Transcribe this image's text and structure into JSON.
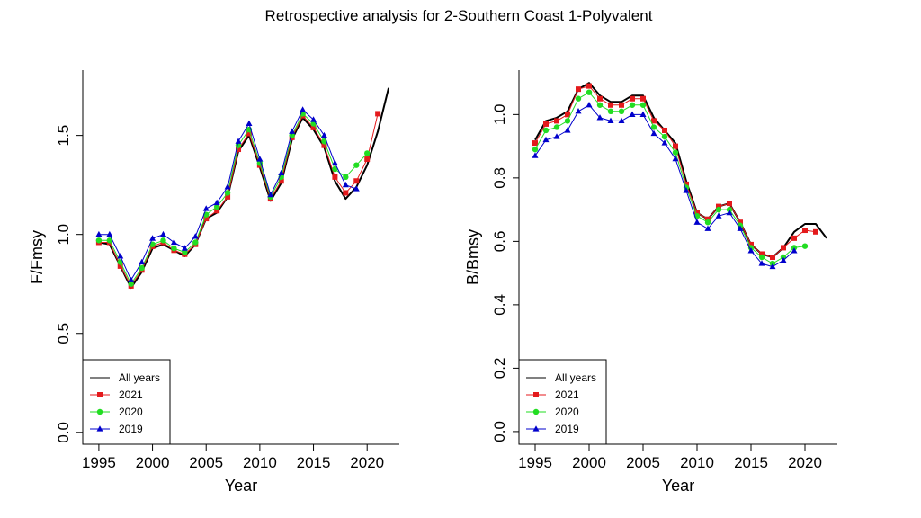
{
  "title": "Retrospective analysis for 2-Southern Coast 1-Polyvalent",
  "colors": {
    "All years": "#000000",
    "2021": "#e41a1c",
    "2020": "#22dd22",
    "2019": "#0000cc"
  },
  "chart_data": [
    {
      "type": "line",
      "title": "",
      "xlabel": "Year",
      "ylabel": "F/Fmsy",
      "xlim": [
        1993.5,
        2023
      ],
      "ylim": [
        -0.06,
        1.83
      ],
      "xticks": [
        1995,
        2000,
        2005,
        2010,
        2015,
        2020
      ],
      "xtick_labels": [
        "1995",
        "2000",
        "2005",
        "2010",
        "2015",
        "2020"
      ],
      "yticks": [
        0,
        0.5,
        1,
        1.5
      ],
      "ytick_labels": [
        "0.0",
        "0.5",
        "1.0",
        "1.5"
      ],
      "legend_position": "bottom-left",
      "legend": [
        "All years",
        "2021",
        "2020",
        "2019"
      ],
      "series": [
        {
          "name": "All years",
          "marker": "none",
          "x": [
            1995,
            1996,
            1997,
            1998,
            1999,
            2000,
            2001,
            2002,
            2003,
            2004,
            2005,
            2006,
            2007,
            2008,
            2009,
            2010,
            2011,
            2012,
            2013,
            2014,
            2015,
            2016,
            2017,
            2018,
            2019,
            2020,
            2021,
            2022
          ],
          "y": [
            0.96,
            0.95,
            0.84,
            0.73,
            0.81,
            0.93,
            0.95,
            0.92,
            0.89,
            0.95,
            1.08,
            1.11,
            1.19,
            1.42,
            1.5,
            1.34,
            1.17,
            1.26,
            1.48,
            1.59,
            1.53,
            1.44,
            1.27,
            1.18,
            1.24,
            1.35,
            1.52,
            1.74
          ]
        },
        {
          "name": "2021",
          "marker": "square",
          "x": [
            1995,
            1996,
            1997,
            1998,
            1999,
            2000,
            2001,
            2002,
            2003,
            2004,
            2005,
            2006,
            2007,
            2008,
            2009,
            2010,
            2011,
            2012,
            2013,
            2014,
            2015,
            2016,
            2017,
            2018,
            2019,
            2020,
            2021
          ],
          "y": [
            0.96,
            0.96,
            0.84,
            0.74,
            0.82,
            0.94,
            0.96,
            0.92,
            0.9,
            0.95,
            1.08,
            1.12,
            1.19,
            1.43,
            1.51,
            1.35,
            1.18,
            1.27,
            1.49,
            1.6,
            1.54,
            1.45,
            1.29,
            1.21,
            1.27,
            1.38,
            1.61
          ]
        },
        {
          "name": "2020",
          "marker": "circle",
          "x": [
            1995,
            1996,
            1997,
            1998,
            1999,
            2000,
            2001,
            2002,
            2003,
            2004,
            2005,
            2006,
            2007,
            2008,
            2009,
            2010,
            2011,
            2012,
            2013,
            2014,
            2015,
            2016,
            2017,
            2018,
            2019,
            2020
          ],
          "y": [
            0.97,
            0.97,
            0.86,
            0.75,
            0.83,
            0.95,
            0.97,
            0.93,
            0.91,
            0.96,
            1.1,
            1.14,
            1.21,
            1.45,
            1.53,
            1.36,
            1.19,
            1.29,
            1.5,
            1.61,
            1.56,
            1.47,
            1.33,
            1.29,
            1.35,
            1.41
          ]
        },
        {
          "name": "2019",
          "marker": "triangle",
          "x": [
            1995,
            1996,
            1997,
            1998,
            1999,
            2000,
            2001,
            2002,
            2003,
            2004,
            2005,
            2006,
            2007,
            2008,
            2009,
            2010,
            2011,
            2012,
            2013,
            2014,
            2015,
            2016,
            2017,
            2018,
            2019
          ],
          "y": [
            1.0,
            1.0,
            0.89,
            0.77,
            0.86,
            0.98,
            1.0,
            0.96,
            0.93,
            0.99,
            1.13,
            1.16,
            1.24,
            1.47,
            1.56,
            1.38,
            1.2,
            1.31,
            1.52,
            1.63,
            1.58,
            1.5,
            1.36,
            1.25,
            1.23
          ]
        }
      ]
    },
    {
      "type": "line",
      "title": "",
      "xlabel": "Year",
      "ylabel": "B/Bmsy",
      "xlim": [
        1993.5,
        2023
      ],
      "ylim": [
        -0.04,
        1.14
      ],
      "xticks": [
        1995,
        2000,
        2005,
        2010,
        2015,
        2020
      ],
      "xtick_labels": [
        "1995",
        "2000",
        "2005",
        "2010",
        "2015",
        "2020"
      ],
      "yticks": [
        0,
        0.2,
        0.4,
        0.6,
        0.8,
        1.0
      ],
      "ytick_labels": [
        "0.0",
        "0.2",
        "0.4",
        "0.6",
        "0.8",
        "1.0"
      ],
      "legend_position": "bottom-left",
      "legend": [
        "All years",
        "2021",
        "2020",
        "2019"
      ],
      "series": [
        {
          "name": "All years",
          "marker": "none",
          "x": [
            1995,
            1996,
            1997,
            1998,
            1999,
            2000,
            2001,
            2002,
            2003,
            2004,
            2005,
            2006,
            2007,
            2008,
            2009,
            2010,
            2011,
            2012,
            2013,
            2014,
            2015,
            2016,
            2017,
            2018,
            2019,
            2020,
            2021,
            2022
          ],
          "y": [
            0.92,
            0.98,
            0.99,
            1.01,
            1.08,
            1.1,
            1.06,
            1.04,
            1.04,
            1.06,
            1.06,
            0.99,
            0.95,
            0.91,
            0.79,
            0.69,
            0.67,
            0.71,
            0.72,
            0.66,
            0.59,
            0.56,
            0.55,
            0.58,
            0.63,
            0.655,
            0.655,
            0.61
          ]
        },
        {
          "name": "2021",
          "marker": "square",
          "x": [
            1995,
            1996,
            1997,
            1998,
            1999,
            2000,
            2001,
            2002,
            2003,
            2004,
            2005,
            2006,
            2007,
            2008,
            2009,
            2010,
            2011,
            2012,
            2013,
            2014,
            2015,
            2016,
            2017,
            2018,
            2019,
            2020,
            2021
          ],
          "y": [
            0.91,
            0.97,
            0.98,
            1.0,
            1.08,
            1.09,
            1.05,
            1.03,
            1.03,
            1.05,
            1.05,
            0.98,
            0.95,
            0.9,
            0.78,
            0.69,
            0.67,
            0.71,
            0.72,
            0.66,
            0.59,
            0.56,
            0.55,
            0.58,
            0.61,
            0.635,
            0.63
          ]
        },
        {
          "name": "2020",
          "marker": "circle",
          "x": [
            1995,
            1996,
            1997,
            1998,
            1999,
            2000,
            2001,
            2002,
            2003,
            2004,
            2005,
            2006,
            2007,
            2008,
            2009,
            2010,
            2011,
            2012,
            2013,
            2014,
            2015,
            2016,
            2017,
            2018,
            2019,
            2020
          ],
          "y": [
            0.89,
            0.95,
            0.96,
            0.98,
            1.05,
            1.07,
            1.03,
            1.01,
            1.01,
            1.03,
            1.03,
            0.96,
            0.93,
            0.88,
            0.77,
            0.68,
            0.66,
            0.7,
            0.7,
            0.65,
            0.58,
            0.55,
            0.53,
            0.55,
            0.58,
            0.585
          ]
        },
        {
          "name": "2019",
          "marker": "triangle",
          "x": [
            1995,
            1996,
            1997,
            1998,
            1999,
            2000,
            2001,
            2002,
            2003,
            2004,
            2005,
            2006,
            2007,
            2008,
            2009,
            2010,
            2011,
            2012,
            2013,
            2014,
            2015,
            2016,
            2017,
            2018,
            2019
          ],
          "y": [
            0.87,
            0.92,
            0.93,
            0.95,
            1.01,
            1.03,
            0.99,
            0.98,
            0.98,
            1.0,
            1.0,
            0.94,
            0.91,
            0.86,
            0.76,
            0.66,
            0.64,
            0.68,
            0.69,
            0.64,
            0.57,
            0.53,
            0.52,
            0.54,
            0.57
          ]
        }
      ]
    }
  ]
}
